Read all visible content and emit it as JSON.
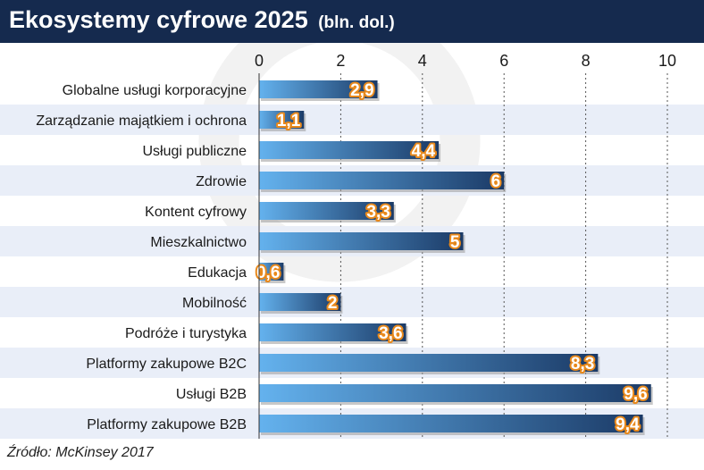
{
  "header": {
    "title": "Ekosystemy cyfrowe 2025",
    "unit": "(bln. dol.)"
  },
  "source": "Źródło: McKinsey 2017",
  "colors": {
    "header_bg": "#152a4e",
    "bar_light": "#64b2ee",
    "bar_dark": "#1b3a66",
    "label_outline": "#e8891c",
    "row_alt": "#e9eef8",
    "grid": "#555555"
  },
  "chart_data": {
    "type": "bar",
    "orientation": "horizontal",
    "categories": [
      "Globalne usługi korporacyjne",
      "Zarządzanie majątkiem i ochrona",
      "Usługi publiczne",
      "Zdrowie",
      "Kontent cyfrowy",
      "Mieszkalnictwo",
      "Edukacja",
      "Mobilność",
      "Podróże i turystyka",
      "Platformy zakupowe B2C",
      "Usługi B2B",
      "Platformy zakupowe B2B"
    ],
    "values": [
      2.9,
      1.1,
      4.4,
      6,
      3.3,
      5,
      0.6,
      2,
      3.6,
      8.3,
      9.6,
      9.4
    ],
    "value_labels": [
      "2,9",
      "1,1",
      "4,4",
      "6",
      "3,3",
      "5",
      "0,6",
      "2",
      "3,6",
      "8,3",
      "9,6",
      "9,4"
    ],
    "xlim": [
      0,
      10
    ],
    "xticks": [
      "0",
      "2",
      "4",
      "6",
      "8",
      "10"
    ],
    "tick_values": [
      0,
      2,
      4,
      6,
      8,
      10
    ],
    "axis_position": "top",
    "grid": true
  }
}
